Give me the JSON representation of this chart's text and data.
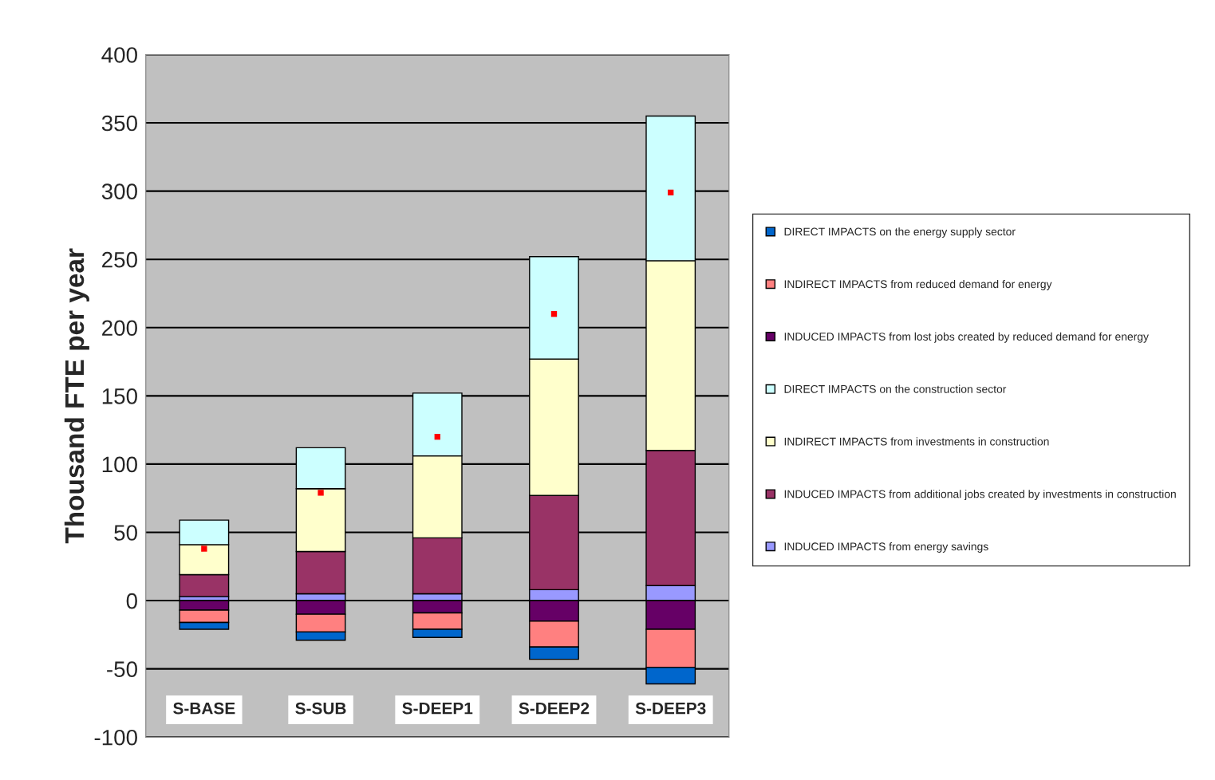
{
  "chart_data": {
    "type": "bar",
    "stacked": true,
    "ylabel": "Thousand FTE per year",
    "categories": [
      "S-BASE",
      "S-SUB",
      "S-DEEP1",
      "S-DEEP2",
      "S-DEEP3"
    ],
    "series": [
      {
        "name": "INDUCED IMPACTS from energy savings",
        "color": "#9999ff",
        "values": [
          3,
          5,
          5,
          8,
          11
        ]
      },
      {
        "name": "INDUCED IMPACTS from additional jobs created by investments in construction",
        "color": "#993366",
        "values": [
          16,
          31,
          41,
          69,
          99
        ]
      },
      {
        "name": "INDIRECT IMPACTS from investments in construction",
        "color": "#ffffcc",
        "values": [
          22,
          46,
          60,
          100,
          139
        ]
      },
      {
        "name": "DIRECT IMPACTS on the construction sector",
        "color": "#ccffff",
        "values": [
          18,
          30,
          46,
          75,
          106
        ]
      },
      {
        "name": "INDUCED IMPACTS from lost jobs created by reduced demand for energy",
        "color": "#660066",
        "values": [
          -7,
          -10,
          -9,
          -15,
          -21
        ]
      },
      {
        "name": "INDIRECT IMPACTS from reduced demand for energy",
        "color": "#ff8080",
        "values": [
          -9,
          -13,
          -12,
          -19,
          -28
        ]
      },
      {
        "name": "DIRECT IMPACTS on the energy supply sector",
        "color": "#0066cc",
        "values": [
          -5,
          -6,
          -6,
          -9,
          -12
        ]
      },
      {
        "type": "scatter",
        "marker": "square",
        "color": "#ff0000",
        "values": [
          38,
          79,
          120,
          210,
          299
        ]
      }
    ],
    "ylim": [
      -100,
      400
    ],
    "yticks": [
      -100,
      -50,
      0,
      50,
      100,
      150,
      200,
      250,
      300,
      350,
      400
    ],
    "grid": "y",
    "legend": "right",
    "tick_labels": "y"
  }
}
